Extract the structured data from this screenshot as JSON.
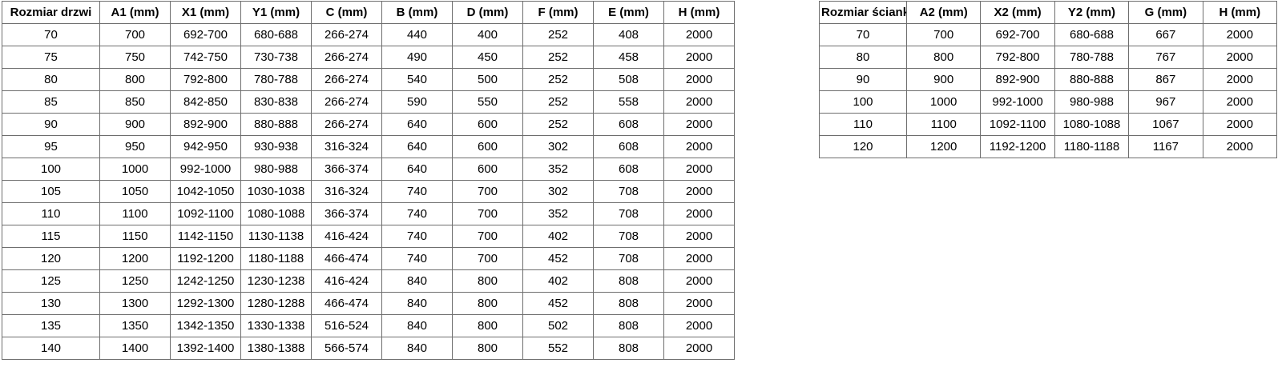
{
  "colors": {
    "background": "#ffffff",
    "border": "#6e6e6e",
    "text": "#000000"
  },
  "tables": [
    {
      "name": "door-dimensions-table",
      "headers": [
        "Rozmiar drzwi",
        "A1 (mm)",
        "X1 (mm)",
        "Y1 (mm)",
        "C (mm)",
        "B (mm)",
        "D (mm)",
        "F (mm)",
        "E (mm)",
        "H (mm)"
      ],
      "rows": [
        [
          "70",
          "700",
          "692-700",
          "680-688",
          "266-274",
          "440",
          "400",
          "252",
          "408",
          "2000"
        ],
        [
          "75",
          "750",
          "742-750",
          "730-738",
          "266-274",
          "490",
          "450",
          "252",
          "458",
          "2000"
        ],
        [
          "80",
          "800",
          "792-800",
          "780-788",
          "266-274",
          "540",
          "500",
          "252",
          "508",
          "2000"
        ],
        [
          "85",
          "850",
          "842-850",
          "830-838",
          "266-274",
          "590",
          "550",
          "252",
          "558",
          "2000"
        ],
        [
          "90",
          "900",
          "892-900",
          "880-888",
          "266-274",
          "640",
          "600",
          "252",
          "608",
          "2000"
        ],
        [
          "95",
          "950",
          "942-950",
          "930-938",
          "316-324",
          "640",
          "600",
          "302",
          "608",
          "2000"
        ],
        [
          "100",
          "1000",
          "992-1000",
          "980-988",
          "366-374",
          "640",
          "600",
          "352",
          "608",
          "2000"
        ],
        [
          "105",
          "1050",
          "1042-1050",
          "1030-1038",
          "316-324",
          "740",
          "700",
          "302",
          "708",
          "2000"
        ],
        [
          "110",
          "1100",
          "1092-1100",
          "1080-1088",
          "366-374",
          "740",
          "700",
          "352",
          "708",
          "2000"
        ],
        [
          "115",
          "1150",
          "1142-1150",
          "1130-1138",
          "416-424",
          "740",
          "700",
          "402",
          "708",
          "2000"
        ],
        [
          "120",
          "1200",
          "1192-1200",
          "1180-1188",
          "466-474",
          "740",
          "700",
          "452",
          "708",
          "2000"
        ],
        [
          "125",
          "1250",
          "1242-1250",
          "1230-1238",
          "416-424",
          "840",
          "800",
          "402",
          "808",
          "2000"
        ],
        [
          "130",
          "1300",
          "1292-1300",
          "1280-1288",
          "466-474",
          "840",
          "800",
          "452",
          "808",
          "2000"
        ],
        [
          "135",
          "1350",
          "1342-1350",
          "1330-1338",
          "516-524",
          "840",
          "800",
          "502",
          "808",
          "2000"
        ],
        [
          "140",
          "1400",
          "1392-1400",
          "1380-1388",
          "566-574",
          "840",
          "800",
          "552",
          "808",
          "2000"
        ]
      ]
    },
    {
      "name": "wall-dimensions-table",
      "headers": [
        "Rozmiar ścianki",
        "A2 (mm)",
        "X2 (mm)",
        "Y2 (mm)",
        "G (mm)",
        "H (mm)"
      ],
      "rows": [
        [
          "70",
          "700",
          "692-700",
          "680-688",
          "667",
          "2000"
        ],
        [
          "80",
          "800",
          "792-800",
          "780-788",
          "767",
          "2000"
        ],
        [
          "90",
          "900",
          "892-900",
          "880-888",
          "867",
          "2000"
        ],
        [
          "100",
          "1000",
          "992-1000",
          "980-988",
          "967",
          "2000"
        ],
        [
          "110",
          "1100",
          "1092-1100",
          "1080-1088",
          "1067",
          "2000"
        ],
        [
          "120",
          "1200",
          "1192-1200",
          "1180-1188",
          "1167",
          "2000"
        ]
      ]
    }
  ]
}
